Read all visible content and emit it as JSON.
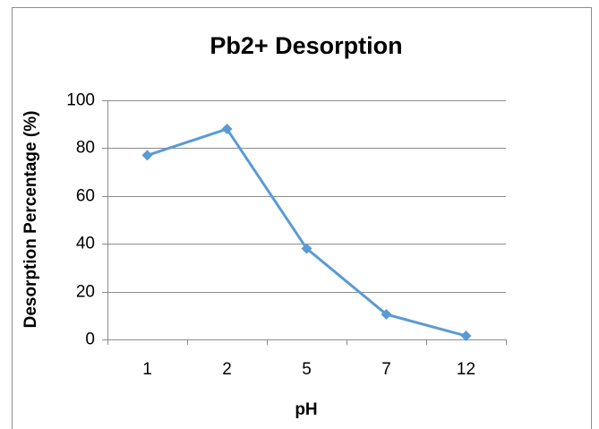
{
  "chart_data": {
    "type": "line",
    "title": "Pb2+ Desorption",
    "x_label": "pH",
    "y_label": "Desorption Percentage (%)",
    "categories": [
      "1",
      "2",
      "5",
      "7",
      "12"
    ],
    "series": [
      {
        "name": "Desorption",
        "color": "#5b9bd5",
        "values": [
          77,
          88,
          38,
          10.5,
          1.5
        ]
      }
    ],
    "ylim": [
      0,
      100
    ],
    "yticks": [
      0,
      20,
      40,
      60,
      80,
      100
    ],
    "grid": true
  }
}
